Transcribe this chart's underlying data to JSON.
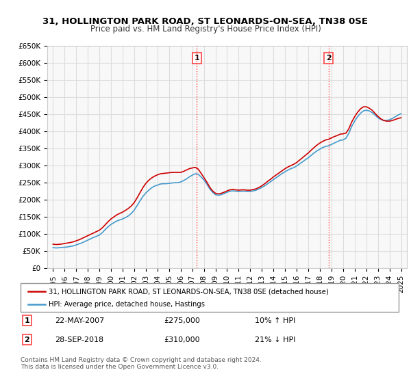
{
  "title": "31, HOLLINGTON PARK ROAD, ST LEONARDS-ON-SEA, TN38 0SE",
  "subtitle": "Price paid vs. HM Land Registry's House Price Index (HPI)",
  "ylabel": "",
  "ylim": [
    0,
    650000
  ],
  "yticks": [
    0,
    50000,
    100000,
    150000,
    200000,
    250000,
    300000,
    350000,
    400000,
    450000,
    500000,
    550000,
    600000,
    650000
  ],
  "ytick_labels": [
    "£0",
    "£50K",
    "£100K",
    "£150K",
    "£200K",
    "£250K",
    "£300K",
    "£350K",
    "£400K",
    "£450K",
    "£500K",
    "£550K",
    "£600K",
    "£650K"
  ],
  "xlim_start": 1994.5,
  "xlim_end": 2025.5,
  "xticks": [
    1995,
    1996,
    1997,
    1998,
    1999,
    2000,
    2001,
    2002,
    2003,
    2004,
    2005,
    2006,
    2007,
    2008,
    2009,
    2010,
    2011,
    2012,
    2013,
    2014,
    2015,
    2016,
    2017,
    2018,
    2019,
    2020,
    2021,
    2022,
    2023,
    2024,
    2025
  ],
  "red_line_color": "#cc0000",
  "blue_line_color": "#4499cc",
  "red_dotted_color": "#ff4444",
  "background_color": "#f8f8f8",
  "grid_color": "#dddddd",
  "transaction1_x": 2007.39,
  "transaction1_label": "1",
  "transaction2_x": 2018.74,
  "transaction2_label": "2",
  "legend_red": "31, HOLLINGTON PARK ROAD, ST LEONARDS-ON-SEA, TN38 0SE (detached house)",
  "legend_blue": "HPI: Average price, detached house, Hastings",
  "ann1_date": "22-MAY-2007",
  "ann1_price": "£275,000",
  "ann1_hpi": "10% ↑ HPI",
  "ann2_date": "28-SEP-2018",
  "ann2_price": "£310,000",
  "ann2_hpi": "21% ↓ HPI",
  "footer": "Contains HM Land Registry data © Crown copyright and database right 2024.\nThis data is licensed under the Open Government Licence v3.0.",
  "hpi_data_x": [
    1995.0,
    1995.25,
    1995.5,
    1995.75,
    1996.0,
    1996.25,
    1996.5,
    1996.75,
    1997.0,
    1997.25,
    1997.5,
    1997.75,
    1998.0,
    1998.25,
    1998.5,
    1998.75,
    1999.0,
    1999.25,
    1999.5,
    1999.75,
    2000.0,
    2000.25,
    2000.5,
    2000.75,
    2001.0,
    2001.25,
    2001.5,
    2001.75,
    2002.0,
    2002.25,
    2002.5,
    2002.75,
    2003.0,
    2003.25,
    2003.5,
    2003.75,
    2004.0,
    2004.25,
    2004.5,
    2004.75,
    2005.0,
    2005.25,
    2005.5,
    2005.75,
    2006.0,
    2006.25,
    2006.5,
    2006.75,
    2007.0,
    2007.25,
    2007.5,
    2007.75,
    2008.0,
    2008.25,
    2008.5,
    2008.75,
    2009.0,
    2009.25,
    2009.5,
    2009.75,
    2010.0,
    2010.25,
    2010.5,
    2010.75,
    2011.0,
    2011.25,
    2011.5,
    2011.75,
    2012.0,
    2012.25,
    2012.5,
    2012.75,
    2013.0,
    2013.25,
    2013.5,
    2013.75,
    2014.0,
    2014.25,
    2014.5,
    2014.75,
    2015.0,
    2015.25,
    2015.5,
    2015.75,
    2016.0,
    2016.25,
    2016.5,
    2016.75,
    2017.0,
    2017.25,
    2017.5,
    2017.75,
    2018.0,
    2018.25,
    2018.5,
    2018.75,
    2019.0,
    2019.25,
    2019.5,
    2019.75,
    2020.0,
    2020.25,
    2020.5,
    2020.75,
    2021.0,
    2021.25,
    2021.5,
    2021.75,
    2022.0,
    2022.25,
    2022.5,
    2022.75,
    2023.0,
    2023.25,
    2023.5,
    2023.75,
    2024.0,
    2024.25,
    2024.5,
    2024.75,
    2025.0
  ],
  "hpi_data_y": [
    60000,
    59000,
    59500,
    60500,
    61000,
    62000,
    63500,
    65000,
    68000,
    71000,
    74000,
    78000,
    82000,
    86000,
    90000,
    93000,
    97000,
    104000,
    113000,
    121000,
    128000,
    133000,
    138000,
    141000,
    144000,
    148000,
    153000,
    160000,
    170000,
    183000,
    197000,
    210000,
    220000,
    228000,
    235000,
    240000,
    243000,
    246000,
    247000,
    247000,
    248000,
    249000,
    250000,
    250000,
    252000,
    256000,
    261000,
    267000,
    272000,
    276000,
    275000,
    267000,
    258000,
    246000,
    232000,
    222000,
    215000,
    213000,
    215000,
    218000,
    222000,
    225000,
    226000,
    225000,
    224000,
    225000,
    225000,
    224000,
    224000,
    226000,
    228000,
    232000,
    236000,
    241000,
    247000,
    253000,
    259000,
    265000,
    271000,
    277000,
    282000,
    287000,
    291000,
    294000,
    299000,
    305000,
    311000,
    317000,
    323000,
    330000,
    337000,
    343000,
    348000,
    353000,
    356000,
    358000,
    362000,
    366000,
    370000,
    374000,
    375000,
    380000,
    395000,
    415000,
    430000,
    443000,
    453000,
    460000,
    462000,
    460000,
    455000,
    448000,
    440000,
    435000,
    432000,
    432000,
    434000,
    438000,
    443000,
    448000,
    452000
  ],
  "red_data_x": [
    1995.0,
    1995.25,
    1995.5,
    1995.75,
    1996.0,
    1996.25,
    1996.5,
    1996.75,
    1997.0,
    1997.25,
    1997.5,
    1997.75,
    1998.0,
    1998.25,
    1998.5,
    1998.75,
    1999.0,
    1999.25,
    1999.5,
    1999.75,
    2000.0,
    2000.25,
    2000.5,
    2000.75,
    2001.0,
    2001.25,
    2001.5,
    2001.75,
    2002.0,
    2002.25,
    2002.5,
    2002.75,
    2003.0,
    2003.25,
    2003.5,
    2003.75,
    2004.0,
    2004.25,
    2004.5,
    2004.75,
    2005.0,
    2005.25,
    2005.5,
    2005.75,
    2006.0,
    2006.25,
    2006.5,
    2006.75,
    2007.0,
    2007.25,
    2007.5,
    2007.75,
    2008.0,
    2008.25,
    2008.5,
    2008.75,
    2009.0,
    2009.25,
    2009.5,
    2009.75,
    2010.0,
    2010.25,
    2010.5,
    2010.75,
    2011.0,
    2011.25,
    2011.5,
    2011.75,
    2012.0,
    2012.25,
    2012.5,
    2012.75,
    2013.0,
    2013.25,
    2013.5,
    2013.75,
    2014.0,
    2014.25,
    2014.5,
    2014.75,
    2015.0,
    2015.25,
    2015.5,
    2015.75,
    2016.0,
    2016.25,
    2016.5,
    2016.75,
    2017.0,
    2017.25,
    2017.5,
    2017.75,
    2018.0,
    2018.25,
    2018.5,
    2018.75,
    2019.0,
    2019.25,
    2019.5,
    2019.75,
    2020.0,
    2020.25,
    2020.5,
    2020.75,
    2021.0,
    2021.25,
    2021.5,
    2021.75,
    2022.0,
    2022.25,
    2022.5,
    2022.75,
    2023.0,
    2023.25,
    2023.5,
    2023.75,
    2024.0,
    2024.25,
    2024.5,
    2024.75,
    2025.0
  ],
  "red_data_y": [
    70000,
    69000,
    69500,
    70500,
    72000,
    73500,
    75000,
    77000,
    80000,
    83000,
    87000,
    91000,
    95000,
    99000,
    103000,
    107000,
    111000,
    118000,
    127000,
    136000,
    144000,
    150000,
    156000,
    160000,
    164000,
    169000,
    175000,
    182000,
    192000,
    206000,
    221000,
    236000,
    248000,
    257000,
    264000,
    269000,
    273000,
    276000,
    277000,
    278000,
    279000,
    280000,
    280000,
    280000,
    280000,
    283000,
    287000,
    291000,
    293000,
    295000,
    290000,
    278000,
    265000,
    252000,
    237000,
    226000,
    219000,
    217000,
    219000,
    222000,
    226000,
    229000,
    230000,
    229000,
    228000,
    229000,
    229000,
    228000,
    228000,
    230000,
    232000,
    236000,
    241000,
    247000,
    254000,
    260000,
    267000,
    273000,
    279000,
    285000,
    291000,
    296000,
    300000,
    304000,
    309000,
    316000,
    323000,
    330000,
    337000,
    345000,
    353000,
    360000,
    366000,
    371000,
    375000,
    377000,
    381000,
    385000,
    388000,
    392000,
    393000,
    395000,
    408000,
    428000,
    443000,
    456000,
    466000,
    472000,
    472000,
    468000,
    462000,
    453000,
    444000,
    437000,
    432000,
    430000,
    430000,
    432000,
    435000,
    438000,
    440000
  ]
}
